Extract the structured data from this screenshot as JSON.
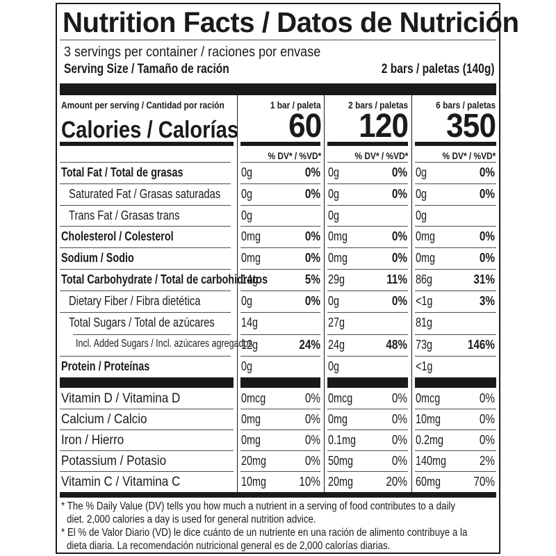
{
  "header": {
    "title": "Nutrition Facts / Datos de Nutrición",
    "servings_per_container": "3 servings per container / raciones por envase",
    "serving_size_label": "Serving Size / Tamaño de ración",
    "serving_size_value": "2 bars / paletas (140g)"
  },
  "calories_section": {
    "amount_per_serving": "Amount per serving / Cantidad por ración",
    "calories_label": "Calories / Calorías",
    "dv_header": "% DV* / %VD*",
    "columns": [
      {
        "header": "1 bar / paleta",
        "calories": "60"
      },
      {
        "header": "2 bars / paletas",
        "calories": "120"
      },
      {
        "header": "6 bars / paletas",
        "calories": "350"
      }
    ]
  },
  "nutrients": [
    {
      "label": "Total Fat / Total de grasas",
      "style": "bold",
      "values": [
        {
          "amt": "0g",
          "dv": "0%"
        },
        {
          "amt": "0g",
          "dv": "0%"
        },
        {
          "amt": "0g",
          "dv": "0%"
        }
      ]
    },
    {
      "label": "Saturated Fat / Grasas saturadas",
      "style": "sub",
      "values": [
        {
          "amt": "0g",
          "dv": "0%"
        },
        {
          "amt": "0g",
          "dv": "0%"
        },
        {
          "amt": "0g",
          "dv": "0%"
        }
      ]
    },
    {
      "label": "Trans Fat / Grasas trans",
      "style": "sub",
      "values": [
        {
          "amt": "0g",
          "dv": ""
        },
        {
          "amt": "0g",
          "dv": ""
        },
        {
          "amt": "0g",
          "dv": ""
        }
      ]
    },
    {
      "label": "Cholesterol / Colesterol",
      "style": "bold",
      "values": [
        {
          "amt": "0mg",
          "dv": "0%"
        },
        {
          "amt": "0mg",
          "dv": "0%"
        },
        {
          "amt": "0mg",
          "dv": "0%"
        }
      ]
    },
    {
      "label": "Sodium / Sodio",
      "style": "bold",
      "values": [
        {
          "amt": "0mg",
          "dv": "0%"
        },
        {
          "amt": "0mg",
          "dv": "0%"
        },
        {
          "amt": "0mg",
          "dv": "0%"
        }
      ]
    },
    {
      "label": "Total Carbohydrate / Total de carbohidratos",
      "style": "bold",
      "values": [
        {
          "amt": "14g",
          "dv": "5%"
        },
        {
          "amt": "29g",
          "dv": "11%"
        },
        {
          "amt": "86g",
          "dv": "31%"
        }
      ]
    },
    {
      "label": "Dietary Fiber / Fibra dietética",
      "style": "sub",
      "values": [
        {
          "amt": "0g",
          "dv": "0%"
        },
        {
          "amt": "0g",
          "dv": "0%"
        },
        {
          "amt": "<1g",
          "dv": "3%"
        }
      ]
    },
    {
      "label": "Total Sugars / Total de azúcares",
      "style": "sub",
      "values": [
        {
          "amt": "14g",
          "dv": ""
        },
        {
          "amt": "27g",
          "dv": ""
        },
        {
          "amt": "81g",
          "dv": ""
        }
      ]
    },
    {
      "label": "Incl. Added Sugars / Incl. azúcares agregados",
      "style": "subsub",
      "values": [
        {
          "amt": "12g",
          "dv": "24%"
        },
        {
          "amt": "24g",
          "dv": "48%"
        },
        {
          "amt": "73g",
          "dv": "146%"
        }
      ]
    },
    {
      "label": "Protein / Proteínas",
      "style": "bold",
      "values": [
        {
          "amt": "0g",
          "dv": ""
        },
        {
          "amt": "0g",
          "dv": ""
        },
        {
          "amt": "<1g",
          "dv": ""
        }
      ]
    }
  ],
  "vitamins": [
    {
      "label": "Vitamin D / Vitamina D",
      "values": [
        {
          "amt": "0mcg",
          "dv": "0%"
        },
        {
          "amt": "0mcg",
          "dv": "0%"
        },
        {
          "amt": "0mcg",
          "dv": "0%"
        }
      ]
    },
    {
      "label": "Calcium / Calcio",
      "values": [
        {
          "amt": "0mg",
          "dv": "0%"
        },
        {
          "amt": "0mg",
          "dv": "0%"
        },
        {
          "amt": "10mg",
          "dv": "0%"
        }
      ]
    },
    {
      "label": "Iron / Hierro",
      "values": [
        {
          "amt": "0mg",
          "dv": "0%"
        },
        {
          "amt": "0.1mg",
          "dv": "0%"
        },
        {
          "amt": "0.2mg",
          "dv": "0%"
        }
      ]
    },
    {
      "label": "Potassium / Potasio",
      "values": [
        {
          "amt": "20mg",
          "dv": "0%"
        },
        {
          "amt": "50mg",
          "dv": "0%"
        },
        {
          "amt": "140mg",
          "dv": "2%"
        }
      ]
    },
    {
      "label": "Vitamin C / Vitamina C",
      "values": [
        {
          "amt": "10mg",
          "dv": "10%"
        },
        {
          "amt": "20mg",
          "dv": "20%"
        },
        {
          "amt": "60mg",
          "dv": "70%"
        }
      ]
    }
  ],
  "footnotes": {
    "en_line1": "* The % Daily Value (DV) tells you how much a nutrient in a serving of food contributes to a daily",
    "en_line2": "diet. 2,000 calories a day is used for general nutrition advice.",
    "es_line1": "* El % de Valor Diario (VD) le dice cuánto de un nutriente en una ración de alimento contribuye a la",
    "es_line2": "dieta diaria. La recomendación nutricional general es de 2,000 calorías diarias."
  },
  "colors": {
    "ink": "#1a1a1a",
    "background": "#ffffff",
    "rule": "#4a4a4a"
  }
}
